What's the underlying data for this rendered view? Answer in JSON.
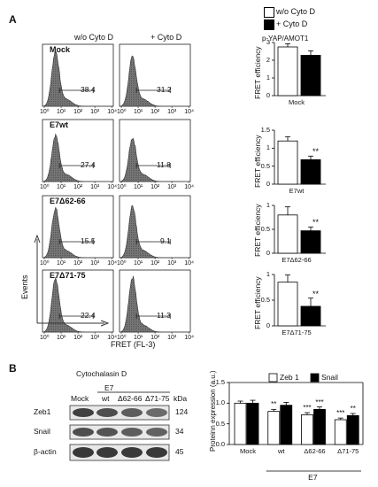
{
  "panelA": {
    "label": "A",
    "col_headers": [
      "w/o Cyto D",
      "+ Cyto D"
    ],
    "xaxis_ticks": [
      "10⁰",
      "10¹",
      "10²",
      "10³",
      "10⁴"
    ],
    "rows": [
      {
        "name": "Mock",
        "pct_without": "38.4",
        "pct_with": "31.2"
      },
      {
        "name": "E7wt",
        "pct_without": "27.4",
        "pct_with": "11.8"
      },
      {
        "name": "E7Δ62-66",
        "pct_without": "15.5",
        "pct_with": "9.1"
      },
      {
        "name": "E7Δ71-75",
        "pct_without": "22.4",
        "pct_with": "11.3"
      }
    ],
    "events_label": "Events",
    "fret_axis_label": "FRET (FL-3)",
    "legend": [
      "w/o Cyto D",
      "+ Cyto D"
    ],
    "bar_title": "p-YAP/AMOT1",
    "bar_ylabel": "FRET efficiency",
    "bar_significance": "**"
  },
  "chart_data": [
    {
      "type": "bar",
      "title": "p-YAP/AMOT1",
      "xlabel": "Mock",
      "ylabel": "FRET efficiency",
      "ylim": [
        0,
        3
      ],
      "yticks": [
        "0",
        "1",
        "2",
        "3"
      ],
      "series": [
        {
          "name": "w/o Cyto D",
          "values": [
            2.75
          ]
        },
        {
          "name": "+ Cyto D",
          "values": [
            2.28
          ]
        }
      ],
      "errors": [
        0.18,
        0.25
      ],
      "significance": [
        "",
        ""
      ]
    },
    {
      "type": "bar",
      "xlabel": "E7wt",
      "ylabel": "FRET efficiency",
      "ylim": [
        0,
        1.5
      ],
      "yticks": [
        "0",
        "0.5",
        "1",
        "1.5"
      ],
      "series": [
        {
          "name": "w/o Cyto D",
          "values": [
            1.2
          ]
        },
        {
          "name": "+ Cyto D",
          "values": [
            0.68
          ]
        }
      ],
      "errors": [
        0.12,
        0.1
      ],
      "significance": [
        "",
        "**"
      ]
    },
    {
      "type": "bar",
      "xlabel": "E7Δ62-66",
      "ylabel": "FRET efficiency",
      "ylim": [
        0,
        1
      ],
      "yticks": [
        "0",
        "0.5",
        "1"
      ],
      "series": [
        {
          "name": "w/o Cyto D",
          "values": [
            0.8
          ]
        },
        {
          "name": "+ Cyto D",
          "values": [
            0.47
          ]
        }
      ],
      "errors": [
        0.17,
        0.08
      ],
      "significance": [
        "",
        "**"
      ]
    },
    {
      "type": "bar",
      "xlabel": "E7Δ71-75",
      "ylabel": "FRET efficiency",
      "ylim": [
        0,
        1
      ],
      "yticks": [
        "0",
        "0.5",
        "1"
      ],
      "series": [
        {
          "name": "w/o Cyto D",
          "values": [
            0.85
          ]
        },
        {
          "name": "+ Cyto D",
          "values": [
            0.38
          ]
        }
      ],
      "errors": [
        0.14,
        0.16
      ],
      "significance": [
        "",
        "**"
      ]
    },
    {
      "type": "bar",
      "ylabel": "Proteinn expression (a.u.)",
      "ylim": [
        0,
        1.5
      ],
      "yticks": [
        "0.0",
        "0.5",
        "1.0",
        "1.5"
      ],
      "categories": [
        "Mock",
        "wt",
        "Δ62-66",
        "Δ71-75"
      ],
      "group_label": "E7",
      "series": [
        {
          "name": "Zeb 1",
          "values": [
            1.0,
            0.8,
            0.72,
            0.6
          ],
          "errors": [
            0.05,
            0.05,
            0.05,
            0.04
          ],
          "significance": [
            "",
            "**",
            "***",
            "***"
          ]
        },
        {
          "name": "Snail",
          "values": [
            1.0,
            0.95,
            0.85,
            0.7
          ],
          "errors": [
            0.07,
            0.07,
            0.06,
            0.05
          ],
          "significance": [
            "",
            "",
            "***",
            "**"
          ]
        }
      ]
    }
  ],
  "panelB": {
    "label": "B",
    "title": "Cytochalasin D",
    "group_label": "E7",
    "lanes": [
      "Mock",
      "wt",
      "Δ62-66",
      "Δ71-75"
    ],
    "kda_label": "kDa",
    "blots": [
      {
        "name": "Zeb1",
        "kda": "124"
      },
      {
        "name": "Snail",
        "kda": "34"
      },
      {
        "name": "β-actin",
        "kda": "45"
      }
    ]
  }
}
